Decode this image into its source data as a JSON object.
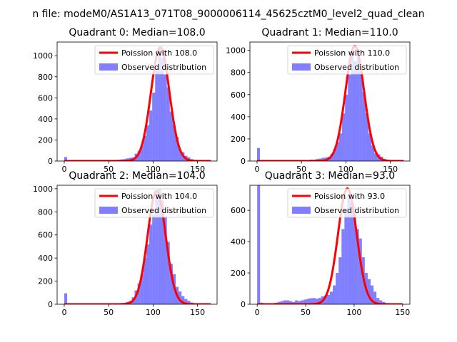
{
  "figure": {
    "suptitle": "n file: modeM0/AS1A13_071T08_9000006114_45625cztM0_level2_quad_clean"
  },
  "colors": {
    "poisson": "#ff0000",
    "observed": "#0000ff",
    "observed_alpha": 0.5
  },
  "chart_data": [
    {
      "type": "bar",
      "title": "Quadrant 0: Median=108.0",
      "xlim": [
        -8,
        172
      ],
      "ylim": [
        0,
        1130
      ],
      "xticks": [
        0,
        50,
        100,
        150
      ],
      "yticks": [
        0,
        200,
        400,
        600,
        800,
        1000
      ],
      "grid": false,
      "legend_position": "top-right",
      "legend": [
        "Poission with 108.0",
        "Observed distribution"
      ],
      "hist": {
        "name": "Observed distribution",
        "bin_width": 3.3,
        "bins": [
          [
            0,
            38
          ],
          [
            3.3,
            5
          ],
          [
            6.6,
            2
          ],
          [
            9.9,
            2
          ],
          [
            13.2,
            2
          ],
          [
            16.5,
            2
          ],
          [
            19.8,
            2
          ],
          [
            23.1,
            2
          ],
          [
            26.4,
            2
          ],
          [
            29.7,
            3
          ],
          [
            33,
            2
          ],
          [
            36.3,
            3
          ],
          [
            39.6,
            3
          ],
          [
            42.9,
            4
          ],
          [
            46.2,
            3
          ],
          [
            49.5,
            5
          ],
          [
            52.8,
            6
          ],
          [
            56.1,
            8
          ],
          [
            59.4,
            12
          ],
          [
            62.7,
            15
          ],
          [
            66,
            18
          ],
          [
            69.3,
            25
          ],
          [
            72.6,
            30
          ],
          [
            75.9,
            35
          ],
          [
            79.2,
            70
          ],
          [
            82.5,
            95
          ],
          [
            85.8,
            150
          ],
          [
            89.1,
            240
          ],
          [
            92.4,
            340
          ],
          [
            95.7,
            480
          ],
          [
            99,
            650
          ],
          [
            102.3,
            880
          ],
          [
            105.6,
            1060
          ],
          [
            108.9,
            980
          ],
          [
            112.2,
            820
          ],
          [
            115.5,
            700
          ],
          [
            118.8,
            470
          ],
          [
            122.1,
            340
          ],
          [
            125.4,
            230
          ],
          [
            128.7,
            110
          ],
          [
            132,
            85
          ],
          [
            135.3,
            50
          ],
          [
            138.6,
            35
          ],
          [
            141.9,
            18
          ],
          [
            145.2,
            10
          ],
          [
            148.5,
            8
          ],
          [
            151.8,
            5
          ],
          [
            155.1,
            3
          ],
          [
            158.4,
            2
          ]
        ]
      },
      "poisson": {
        "name": "Poission with 108.0",
        "mean": 108,
        "peak": 1080,
        "range": [
          0,
          165
        ]
      }
    },
    {
      "type": "bar",
      "title": "Quadrant 1: Median=110.0",
      "xlim": [
        -8,
        172
      ],
      "ylim": [
        0,
        1075
      ],
      "xticks": [
        0,
        50,
        100,
        150
      ],
      "yticks": [
        0,
        200,
        400,
        600,
        800,
        1000
      ],
      "grid": false,
      "legend_position": "top-right",
      "legend": [
        "Poission with 110.0",
        "Observed distribution"
      ],
      "hist": {
        "name": "Observed distribution",
        "bin_width": 3.3,
        "bins": [
          [
            0,
            118
          ],
          [
            3.3,
            4
          ],
          [
            6.6,
            2
          ],
          [
            9.9,
            2
          ],
          [
            13.2,
            2
          ],
          [
            16.5,
            2
          ],
          [
            19.8,
            2
          ],
          [
            23.1,
            2
          ],
          [
            26.4,
            2
          ],
          [
            29.7,
            2
          ],
          [
            33,
            2
          ],
          [
            36.3,
            3
          ],
          [
            39.6,
            3
          ],
          [
            42.9,
            3
          ],
          [
            46.2,
            3
          ],
          [
            49.5,
            4
          ],
          [
            52.8,
            4
          ],
          [
            56.1,
            6
          ],
          [
            59.4,
            12
          ],
          [
            62.7,
            12
          ],
          [
            66,
            18
          ],
          [
            69.3,
            22
          ],
          [
            72.6,
            28
          ],
          [
            75.9,
            32
          ],
          [
            79.2,
            40
          ],
          [
            82.5,
            65
          ],
          [
            85.8,
            110
          ],
          [
            89.1,
            170
          ],
          [
            92.4,
            250
          ],
          [
            95.7,
            430
          ],
          [
            99,
            600
          ],
          [
            102.3,
            780
          ],
          [
            105.6,
            960
          ],
          [
            108.9,
            900
          ],
          [
            112.2,
            1010
          ],
          [
            115.5,
            850
          ],
          [
            118.8,
            620
          ],
          [
            122.1,
            430
          ],
          [
            125.4,
            250
          ],
          [
            128.7,
            140
          ],
          [
            132,
            70
          ],
          [
            135.3,
            60
          ],
          [
            138.6,
            40
          ],
          [
            141.9,
            20
          ],
          [
            145.2,
            12
          ],
          [
            148.5,
            8
          ],
          [
            151.8,
            4
          ],
          [
            155.1,
            3
          ],
          [
            158.4,
            2
          ]
        ]
      },
      "poisson": {
        "name": "Poission with 110.0",
        "mean": 110,
        "peak": 1040,
        "range": [
          0,
          165
        ]
      }
    },
    {
      "type": "bar",
      "title": "Quadrant 2: Median=104.0",
      "xlim": [
        -8,
        172
      ],
      "ylim": [
        0,
        1030
      ],
      "xticks": [
        0,
        50,
        100,
        150
      ],
      "yticks": [
        0,
        200,
        400,
        600,
        800,
        1000
      ],
      "grid": false,
      "legend_position": "top-right",
      "legend": [
        "Poission with 104.0",
        "Observed distribution"
      ],
      "hist": {
        "name": "Observed distribution",
        "bin_width": 3.3,
        "bins": [
          [
            0,
            95
          ],
          [
            3.3,
            4
          ],
          [
            6.6,
            2
          ],
          [
            9.9,
            2
          ],
          [
            13.2,
            2
          ],
          [
            16.5,
            2
          ],
          [
            19.8,
            2
          ],
          [
            23.1,
            2
          ],
          [
            26.4,
            2
          ],
          [
            29.7,
            2
          ],
          [
            33,
            2
          ],
          [
            36.3,
            2
          ],
          [
            39.6,
            3
          ],
          [
            42.9,
            3
          ],
          [
            46.2,
            3
          ],
          [
            49.5,
            8
          ],
          [
            52.8,
            4
          ],
          [
            56.1,
            5
          ],
          [
            59.4,
            5
          ],
          [
            62.7,
            10
          ],
          [
            66,
            12
          ],
          [
            69.3,
            20
          ],
          [
            72.6,
            30
          ],
          [
            75.9,
            60
          ],
          [
            79.2,
            120
          ],
          [
            82.5,
            180
          ],
          [
            85.8,
            260
          ],
          [
            89.1,
            400
          ],
          [
            92.4,
            520
          ],
          [
            95.7,
            690
          ],
          [
            99,
            780
          ],
          [
            102.3,
            960
          ],
          [
            105.6,
            1000
          ],
          [
            108.9,
            900
          ],
          [
            112.2,
            760
          ],
          [
            115.5,
            540
          ],
          [
            118.8,
            350
          ],
          [
            122.1,
            260
          ],
          [
            125.4,
            150
          ],
          [
            128.7,
            110
          ],
          [
            132,
            70
          ],
          [
            135.3,
            45
          ],
          [
            138.6,
            30
          ],
          [
            141.9,
            15
          ],
          [
            145.2,
            10
          ],
          [
            148.5,
            5
          ],
          [
            151.8,
            3
          ],
          [
            155.1,
            2
          ]
        ]
      },
      "poisson": {
        "name": "Poission with 104.0",
        "mean": 104,
        "peak": 980,
        "range": [
          0,
          165
        ]
      }
    },
    {
      "type": "bar",
      "title": "Quadrant 3: Median=93.0",
      "xlim": [
        -7.5,
        157.5
      ],
      "ylim": [
        0,
        760
      ],
      "xticks": [
        0,
        50,
        100,
        150
      ],
      "yticks": [
        0,
        200,
        400,
        600
      ],
      "grid": false,
      "legend_position": "top-right",
      "legend": [
        "Poission with 93.0",
        "Observed distribution"
      ],
      "hist": {
        "name": "Observed distribution",
        "bin_width": 3,
        "bins": [
          [
            0,
            760
          ],
          [
            3,
            10
          ],
          [
            6,
            6
          ],
          [
            9,
            4
          ],
          [
            12,
            4
          ],
          [
            15,
            5
          ],
          [
            18,
            10
          ],
          [
            21,
            15
          ],
          [
            24,
            20
          ],
          [
            27,
            25
          ],
          [
            30,
            25
          ],
          [
            33,
            20
          ],
          [
            36,
            15
          ],
          [
            39,
            25
          ],
          [
            42,
            20
          ],
          [
            45,
            25
          ],
          [
            48,
            30
          ],
          [
            51,
            35
          ],
          [
            54,
            38
          ],
          [
            57,
            40
          ],
          [
            60,
            35
          ],
          [
            63,
            40
          ],
          [
            66,
            50
          ],
          [
            69,
            55
          ],
          [
            72,
            60
          ],
          [
            75,
            80
          ],
          [
            78,
            120
          ],
          [
            81,
            200
          ],
          [
            84,
            300
          ],
          [
            87,
            480
          ],
          [
            90,
            610
          ],
          [
            93,
            700
          ],
          [
            96,
            650
          ],
          [
            99,
            620
          ],
          [
            102,
            480
          ],
          [
            105,
            420
          ],
          [
            108,
            300
          ],
          [
            111,
            200
          ],
          [
            114,
            160
          ],
          [
            117,
            120
          ],
          [
            120,
            80
          ],
          [
            123,
            40
          ],
          [
            126,
            25
          ],
          [
            129,
            15
          ],
          [
            132,
            8
          ],
          [
            135,
            5
          ],
          [
            138,
            3
          ]
        ]
      },
      "poisson": {
        "name": "Poission with 93.0",
        "mean": 93,
        "peak": 740,
        "range": [
          0,
          150
        ]
      }
    }
  ]
}
